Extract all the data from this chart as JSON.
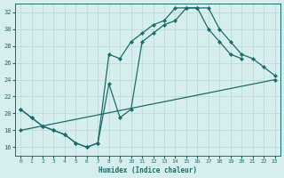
{
  "xlabel": "Humidex (Indice chaleur)",
  "ylabel": "",
  "bg_color": "#d6eeee",
  "grid_color": "#b8d8d8",
  "line_color": "#1a6b6b",
  "xlim": [
    -0.5,
    23.5
  ],
  "ylim": [
    15,
    33
  ],
  "xticks": [
    0,
    1,
    2,
    3,
    4,
    5,
    6,
    7,
    8,
    9,
    10,
    11,
    12,
    13,
    14,
    15,
    16,
    17,
    18,
    19,
    20,
    21,
    22,
    23
  ],
  "yticks": [
    16,
    18,
    20,
    22,
    24,
    26,
    28,
    30,
    32
  ],
  "curve1_x": [
    0,
    1,
    2,
    3,
    4,
    5,
    6,
    7,
    8,
    9,
    10,
    11,
    12,
    13,
    14,
    15,
    16,
    17,
    18,
    19,
    20,
    21,
    22,
    23
  ],
  "curve1_y": [
    20.5,
    19.5,
    18.5,
    18.0,
    17.5,
    16.5,
    16.0,
    16.5,
    23.5,
    19.5,
    20.5,
    28.5,
    29.5,
    30.5,
    31.0,
    32.5,
    32.5,
    32.5,
    30.0,
    28.5,
    27.0,
    26.5,
    25.5,
    24.5
  ],
  "curve2_x": [
    0,
    1,
    2,
    3,
    4,
    5,
    6,
    7,
    8,
    9,
    10,
    11,
    12,
    13,
    14,
    15,
    16,
    17,
    18,
    19,
    20
  ],
  "curve2_y": [
    20.5,
    19.5,
    18.5,
    18.0,
    17.5,
    16.5,
    16.0,
    16.5,
    27.0,
    26.5,
    28.5,
    29.5,
    30.5,
    31.0,
    32.5,
    32.5,
    32.5,
    30.0,
    28.5,
    27.0,
    26.5
  ],
  "curve3_x": [
    0,
    23
  ],
  "curve3_y": [
    18.0,
    24.0
  ]
}
